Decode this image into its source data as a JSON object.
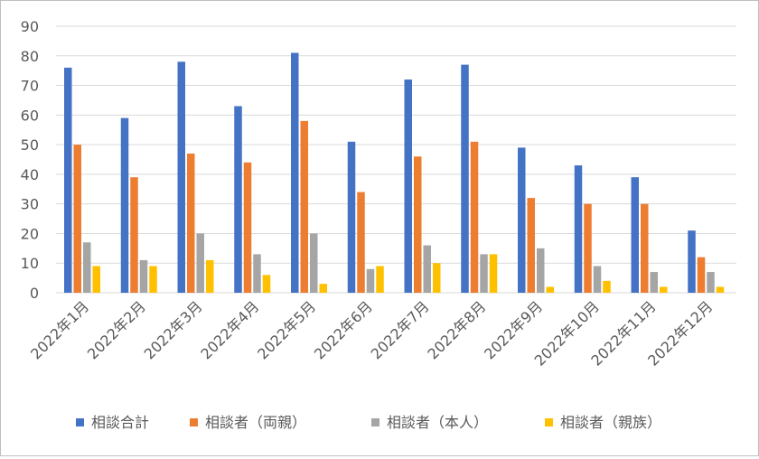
{
  "chart_data": {
    "type": "bar",
    "title": "",
    "xlabel": "",
    "ylabel": "",
    "ylim": [
      0,
      90
    ],
    "y_ticks": [
      0,
      10,
      20,
      30,
      40,
      50,
      60,
      70,
      80,
      90
    ],
    "grid": true,
    "legend_position": "bottom",
    "categories": [
      "2022年1月",
      "2022年2月",
      "2022年3月",
      "2022年4月",
      "2022年5月",
      "2022年6月",
      "2022年7月",
      "2022年8月",
      "2022年9月",
      "2022年10月",
      "2022年11月",
      "2022年12月"
    ],
    "series": [
      {
        "name": "相談合計",
        "color": "#4472c4",
        "values": [
          76,
          59,
          78,
          63,
          81,
          51,
          72,
          77,
          49,
          43,
          39,
          21
        ]
      },
      {
        "name": "相談者（両親）",
        "color": "#ed7d31",
        "values": [
          50,
          39,
          47,
          44,
          58,
          34,
          46,
          51,
          32,
          30,
          30,
          12
        ]
      },
      {
        "name": "相談者（本人）",
        "color": "#a5a5a5",
        "values": [
          17,
          11,
          20,
          13,
          20,
          8,
          16,
          13,
          15,
          9,
          7,
          7
        ]
      },
      {
        "name": "相談者（親族）",
        "color": "#ffc000",
        "values": [
          9,
          9,
          11,
          6,
          3,
          9,
          10,
          13,
          2,
          4,
          2,
          2
        ]
      }
    ]
  }
}
